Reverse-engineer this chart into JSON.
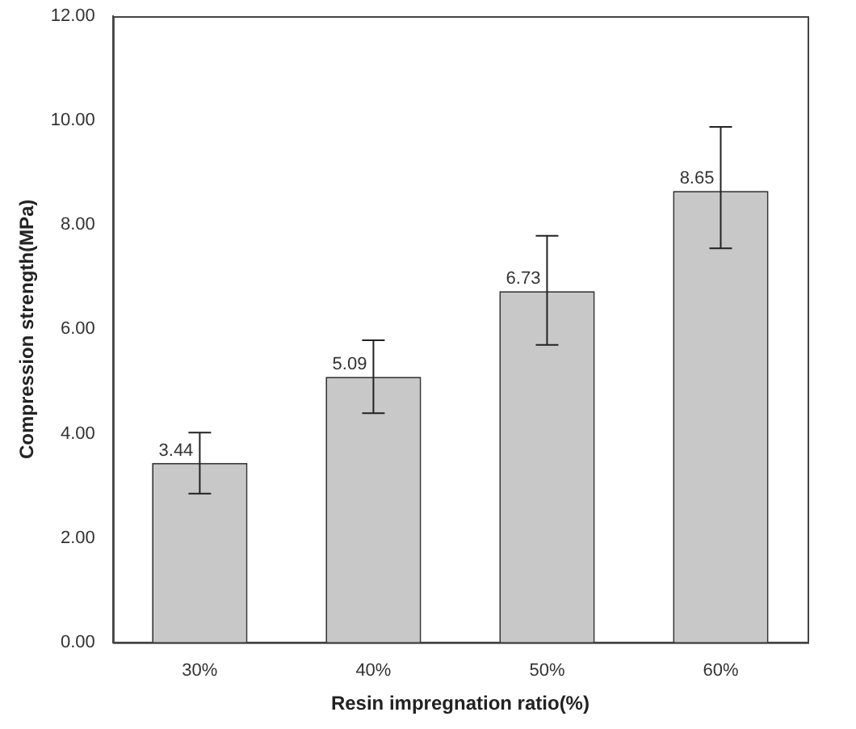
{
  "chart_data": {
    "type": "bar",
    "xlabel": "Resin impregnation ratio(%)",
    "ylabel": "Compression strength(MPa)",
    "categories": [
      "30%",
      "40%",
      "50%",
      "60%"
    ],
    "values": [
      3.44,
      5.09,
      6.73,
      8.65
    ],
    "errors": [
      [
        2.85,
        4.02
      ],
      [
        4.39,
        5.79
      ],
      [
        5.7,
        7.79
      ],
      [
        7.55,
        9.88
      ]
    ],
    "color": "#c8c8c8",
    "ylim": [
      0,
      12
    ],
    "yticks": [
      {
        "value": 0,
        "label": "0.00"
      },
      {
        "value": 2,
        "label": "2.00"
      },
      {
        "value": 4,
        "label": "4.00"
      },
      {
        "value": 6,
        "label": "6.00"
      },
      {
        "value": 8,
        "label": "8.00"
      },
      {
        "value": 10,
        "label": "10.00"
      },
      {
        "value": 12,
        "label": "12.00"
      }
    ],
    "data_labels": true,
    "grid": false,
    "legend": false
  }
}
